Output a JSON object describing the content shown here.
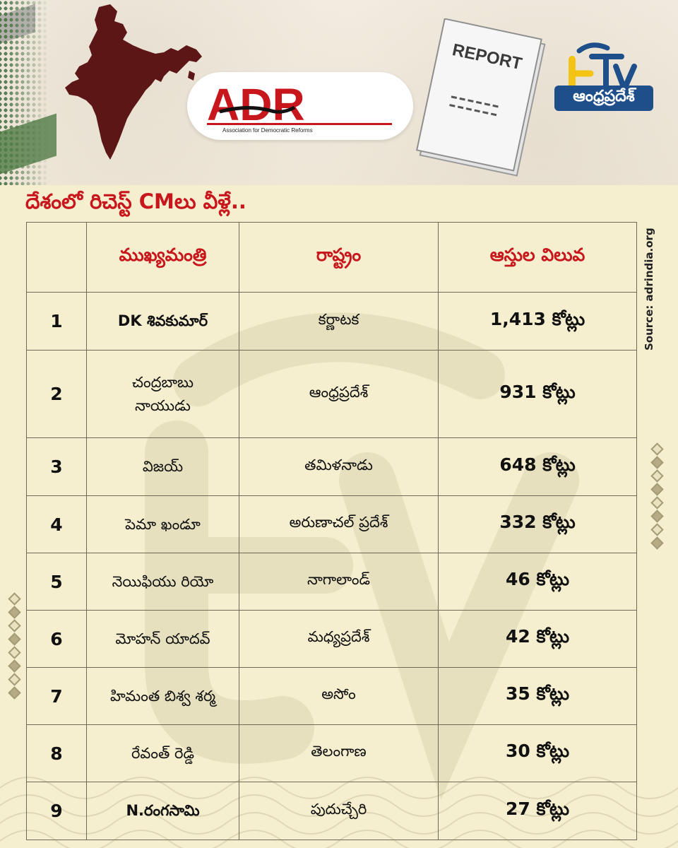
{
  "brand": {
    "adr_name": "ADR",
    "adr_tagline": "Association for Democratic Reforms",
    "report_label": "REPORT",
    "channel_badge": "ఆంధ్రప్రదేశ్"
  },
  "headline": "దేశంలో రిచెస్ట్ CMలు వీళ్లే..",
  "source": "Source: adrindia.org",
  "table": {
    "headers": [
      "",
      "ముఖ్యమంత్రి",
      "రాష్ట్రం",
      "ఆస్తుల విలువ"
    ],
    "rows": [
      {
        "rank": "1",
        "name": "DK శివకుమార్",
        "state": "కర్ణాటక",
        "assets": "1,413 కోట్లు"
      },
      {
        "rank": "2",
        "name": "చంద్రబాబు\nనాయుడు",
        "state": "ఆంధ్రప్రదేశ్",
        "assets": "931 కోట్లు"
      },
      {
        "rank": "3",
        "name": "విజయ్",
        "state": "తమిళనాడు",
        "assets": "648 కోట్లు"
      },
      {
        "rank": "4",
        "name": "పెమా ఖండూ",
        "state": "అరుణాచల్ ప్రదేశ్",
        "assets": "332 కోట్లు"
      },
      {
        "rank": "5",
        "name": "నెయిఫియు రియో",
        "state": "నాగాలాండ్",
        "assets": "46 కోట్లు"
      },
      {
        "rank": "6",
        "name": "మోహన్ యాదవ్",
        "state": "మధ్యప్రదేశ్",
        "assets": "42 కోట్లు"
      },
      {
        "rank": "7",
        "name": "హిమంత బిశ్వ శర్మ",
        "state": "అసోం",
        "assets": "35 కోట్లు"
      },
      {
        "rank": "8",
        "name": "రేవంత్ రెడ్డి",
        "state": "తెలంగాణ",
        "assets": "30 కోట్లు"
      },
      {
        "rank": "9",
        "name": "N.రంగసామి",
        "state": "పుదుచ్చేరి",
        "assets": "27 కోట్లు"
      }
    ]
  },
  "colors": {
    "accent_red": "#c8161d",
    "background": "#f5efcf",
    "badge_blue": "#1f4f8a",
    "map_maroon": "#5c1616"
  },
  "icons": [
    "india-map-icon",
    "adr-logo",
    "report-document-icon",
    "etv-logo"
  ]
}
